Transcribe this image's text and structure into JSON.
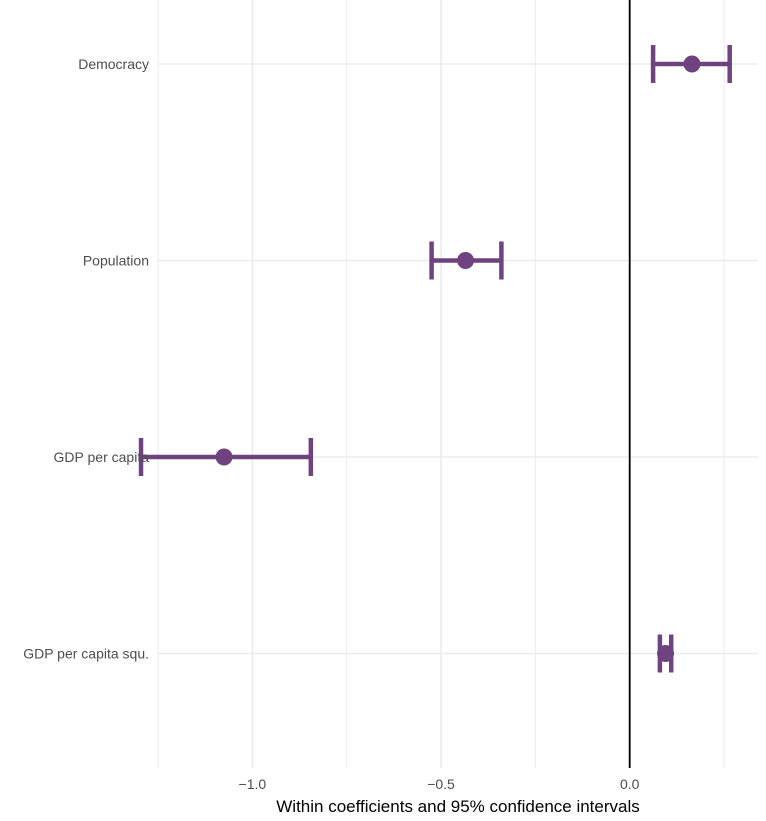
{
  "chart_data": {
    "type": "scatter",
    "title": "",
    "xlabel": "Within coefficients and 95% confidence intervals",
    "ylabel": "",
    "xlim": [
      -1.25,
      0.34
    ],
    "x_ticks": [
      {
        "value": -1.0,
        "label": "−1.0"
      },
      {
        "value": -0.5,
        "label": "−0.5"
      },
      {
        "value": 0.0,
        "label": "0.0"
      }
    ],
    "x_minor_ticks": [
      -1.25,
      -0.75,
      -0.25,
      0.25
    ],
    "reference_line": 0.0,
    "grid": true,
    "legend": "none",
    "color": "#5b2a6e",
    "categories": [
      "Democracy",
      "Population",
      "GDP per capita",
      "GDP per capita squ."
    ],
    "estimates": [
      0.165,
      -0.435,
      -1.075,
      0.095
    ],
    "ci_low": [
      0.062,
      -0.525,
      -1.295,
      0.08
    ],
    "ci_high": [
      0.265,
      -0.34,
      -0.845,
      0.11
    ]
  }
}
